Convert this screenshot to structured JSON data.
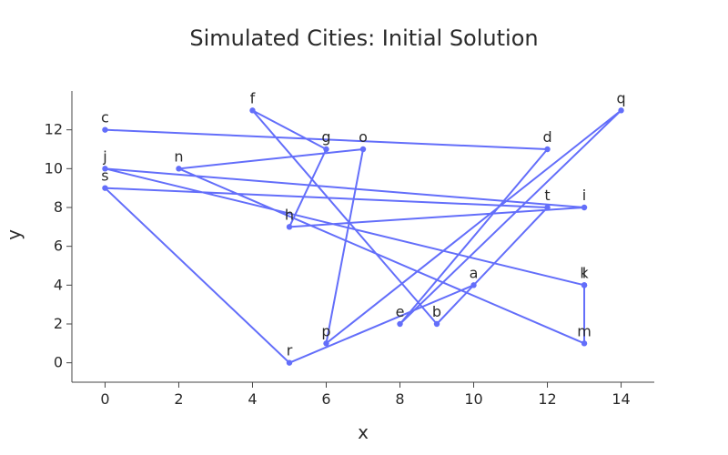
{
  "chart_data": {
    "type": "line",
    "title": "Simulated Cities: Initial Solution",
    "xlabel": "x",
    "ylabel": "y",
    "xlim": [
      -0.9,
      14.9
    ],
    "ylim": [
      -1.0,
      14.0
    ],
    "x_ticks": [
      0,
      2,
      4,
      6,
      8,
      10,
      12,
      14
    ],
    "y_ticks": [
      0,
      2,
      4,
      6,
      8,
      10,
      12
    ],
    "grid": false,
    "line_color": "#636efa",
    "series": [
      {
        "points": [
          {
            "label": "c",
            "x": 0,
            "y": 12
          },
          {
            "label": "d",
            "x": 12,
            "y": 11
          },
          {
            "label": "e",
            "x": 8,
            "y": 2
          },
          {
            "label": "q",
            "x": 14,
            "y": 13
          },
          {
            "label": "p",
            "x": 6,
            "y": 1
          },
          {
            "label": "o",
            "x": 7,
            "y": 11
          },
          {
            "label": "n",
            "x": 2,
            "y": 10
          },
          {
            "label": "m",
            "x": 13,
            "y": 1
          },
          {
            "label": "l",
            "x": 13,
            "y": 4
          },
          {
            "label": "k",
            "x": 13,
            "y": 4
          },
          {
            "label": "j",
            "x": 0,
            "y": 10
          },
          {
            "label": "i",
            "x": 13,
            "y": 8
          },
          {
            "label": "h",
            "x": 5,
            "y": 7
          },
          {
            "label": "g",
            "x": 6,
            "y": 11
          },
          {
            "label": "f",
            "x": 4,
            "y": 13
          },
          {
            "label": "b",
            "x": 9,
            "y": 2
          },
          {
            "label": "t",
            "x": 12,
            "y": 8
          },
          {
            "label": "s",
            "x": 0,
            "y": 9
          },
          {
            "label": "r",
            "x": 5,
            "y": 0
          },
          {
            "label": "a",
            "x": 10,
            "y": 4
          }
        ]
      }
    ]
  }
}
